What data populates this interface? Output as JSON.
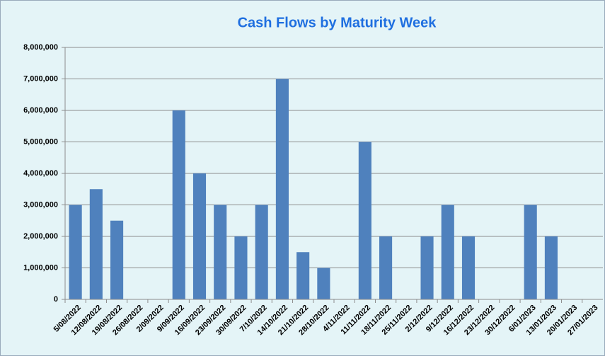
{
  "chart_data": {
    "type": "bar",
    "title": "Cash Flows by Maturity Week",
    "categories": [
      "5/08/2022",
      "12/08/2022",
      "19/08/2022",
      "26/08/2022",
      "2/09/2022",
      "9/09/2022",
      "16/09/2022",
      "23/09/2022",
      "30/09/2022",
      "7/10/2022",
      "14/10/2022",
      "21/10/2022",
      "28/10/2022",
      "4/11/2022",
      "11/11/2022",
      "18/11/2022",
      "25/11/2022",
      "2/12/2022",
      "9/12/2022",
      "16/12/2022",
      "23/12/2022",
      "30/12/2022",
      "6/01/2023",
      "13/01/2023",
      "20/01/2023",
      "27/01/2023"
    ],
    "values": [
      3000000,
      3500000,
      2500000,
      0,
      0,
      6000000,
      4000000,
      3000000,
      2000000,
      3000000,
      7000000,
      1500000,
      1000000,
      0,
      5000000,
      2000000,
      0,
      2000000,
      3000000,
      2000000,
      0,
      0,
      3000000,
      2000000,
      0,
      0
    ],
    "color": "#4f81bd",
    "ylim": [
      0,
      8000000
    ],
    "yticks": [
      0,
      {
        "value": 1000000,
        "label": "1,000,000"
      },
      {
        "value": 2000000,
        "label": "2,000,000"
      },
      {
        "value": 3000000,
        "label": "3,000,000"
      },
      {
        "value": 4000000,
        "label": "4,000,000"
      },
      {
        "value": 5000000,
        "label": "5,000,000"
      },
      {
        "value": 6000000,
        "label": "6,000,000"
      },
      {
        "value": 7000000,
        "label": "7,000,000"
      },
      {
        "value": 8000000,
        "label": "8,000,000"
      }
    ],
    "grid": true
  }
}
